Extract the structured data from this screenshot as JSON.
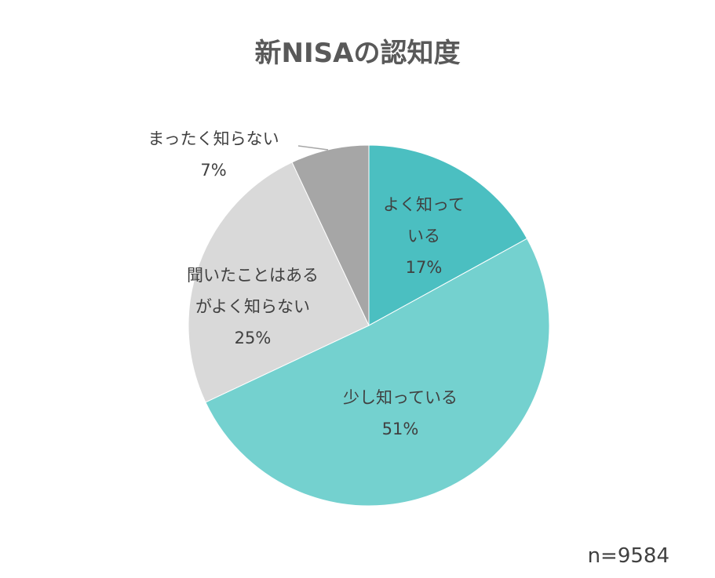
{
  "chart_data": {
    "type": "pie",
    "title": "新NISAの認知度",
    "slices": [
      {
        "label_lines": [
          "よく知って",
          "いる"
        ],
        "value_label": "17%",
        "value": 17,
        "color": "#4bbfc1"
      },
      {
        "label_lines": [
          "少し知っている"
        ],
        "value_label": "51%",
        "value": 51,
        "color": "#74d1cf"
      },
      {
        "label_lines": [
          "聞いたことはある",
          "がよく知らない"
        ],
        "value_label": "25%",
        "value": 25,
        "color": "#d9d9d9"
      },
      {
        "label_lines": [
          "まったく知らない"
        ],
        "value_label": "7%",
        "value": 7,
        "color": "#a6a6a6"
      }
    ],
    "start": "12 o'clock, clockwise",
    "legend": "none",
    "note": "n=9584"
  }
}
